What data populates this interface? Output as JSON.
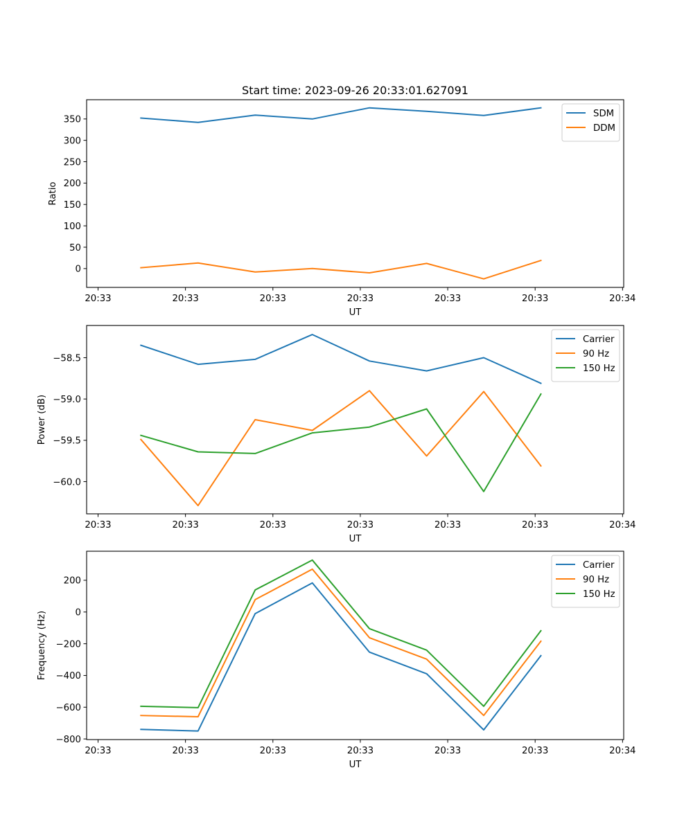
{
  "figure": {
    "title": "Start time: 2023-09-26 20:33:01.627091"
  },
  "chart_data": [
    {
      "type": "line",
      "title": "Start time: 2023-09-26 20:33:01.627091",
      "xlabel": "UT",
      "ylabel": "Ratio",
      "x": [
        0,
        1,
        2,
        3,
        4,
        5,
        6,
        7
      ],
      "xlim": [
        -0.95,
        8.45
      ],
      "xticks": [
        -0.75,
        0.78,
        2.31,
        3.84,
        5.37,
        6.9,
        8.43
      ],
      "xtick_labels": [
        "20:33",
        "20:33",
        "20:33",
        "20:33",
        "20:33",
        "20:33",
        "20:34"
      ],
      "ylim": [
        -44,
        395
      ],
      "yticks": [
        0,
        50,
        100,
        150,
        200,
        250,
        300,
        350
      ],
      "ytick_labels": [
        "0",
        "50",
        "100",
        "150",
        "200",
        "250",
        "300",
        "350"
      ],
      "grid": false,
      "legend": "top-right",
      "series": [
        {
          "name": "SDM",
          "color": "#1f77b4",
          "values": [
            352,
            342,
            359,
            350,
            376,
            368,
            358,
            376
          ]
        },
        {
          "name": "DDM",
          "color": "#ff7f0e",
          "values": [
            2,
            13,
            -8,
            0,
            -10,
            12,
            -24,
            19
          ]
        }
      ]
    },
    {
      "type": "line",
      "title": "",
      "xlabel": "UT",
      "ylabel": "Power (dB)",
      "x": [
        0,
        1,
        2,
        3,
        4,
        5,
        6,
        7
      ],
      "xlim": [
        -0.95,
        8.45
      ],
      "xticks": [
        -0.75,
        0.78,
        2.31,
        3.84,
        5.37,
        6.9,
        8.43
      ],
      "xtick_labels": [
        "20:33",
        "20:33",
        "20:33",
        "20:33",
        "20:33",
        "20:33",
        "20:34"
      ],
      "ylim": [
        -60.39,
        -58.11
      ],
      "yticks": [
        -60.0,
        -59.5,
        -59.0,
        -58.5
      ],
      "ytick_labels": [
        "−60.0",
        "−59.5",
        "−59.0",
        "−58.5"
      ],
      "grid": false,
      "legend": "top-right",
      "series": [
        {
          "name": "Carrier",
          "color": "#1f77b4",
          "values": [
            -58.35,
            -58.58,
            -58.52,
            -58.22,
            -58.54,
            -58.66,
            -58.5,
            -58.81
          ]
        },
        {
          "name": "90 Hz",
          "color": "#ff7f0e",
          "values": [
            -59.49,
            -60.29,
            -59.25,
            -59.38,
            -58.9,
            -59.69,
            -58.91,
            -59.81
          ]
        },
        {
          "name": "150 Hz",
          "color": "#2ca02c",
          "values": [
            -59.44,
            -59.64,
            -59.66,
            -59.41,
            -59.34,
            -59.12,
            -60.12,
            -58.94
          ]
        }
      ]
    },
    {
      "type": "line",
      "title": "",
      "xlabel": "UT",
      "ylabel": "Frequency (Hz)",
      "x": [
        0,
        1,
        2,
        3,
        4,
        5,
        6,
        7
      ],
      "xlim": [
        -0.95,
        8.45
      ],
      "xticks": [
        -0.75,
        0.78,
        2.31,
        3.84,
        5.37,
        6.9,
        8.43
      ],
      "xtick_labels": [
        "20:33",
        "20:33",
        "20:33",
        "20:33",
        "20:33",
        "20:33",
        "20:34"
      ],
      "ylim": [
        -804,
        383
      ],
      "yticks": [
        -800,
        -600,
        -400,
        -200,
        0,
        200
      ],
      "ytick_labels": [
        "−800",
        "−600",
        "−400",
        "−200",
        "0",
        "200"
      ],
      "grid": false,
      "legend": "top-right",
      "series": [
        {
          "name": "Carrier",
          "color": "#1f77b4",
          "values": [
            -740,
            -750,
            -10,
            183,
            -253,
            -389,
            -743,
            -275
          ]
        },
        {
          "name": "90 Hz",
          "color": "#ff7f0e",
          "values": [
            -652,
            -660,
            78,
            270,
            -162,
            -297,
            -652,
            -184
          ]
        },
        {
          "name": "150 Hz",
          "color": "#2ca02c",
          "values": [
            -594,
            -603,
            139,
            327,
            -105,
            -240,
            -594,
            -118
          ]
        }
      ]
    }
  ]
}
